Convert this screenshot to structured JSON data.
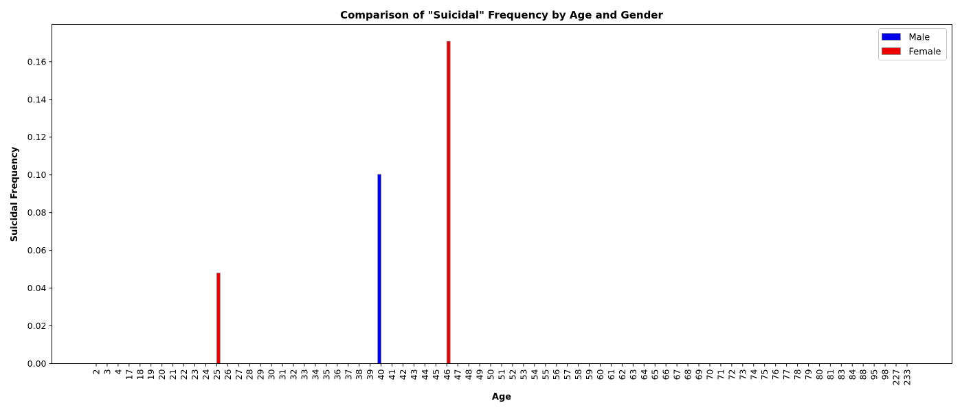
{
  "chart_data": {
    "type": "bar",
    "title": "Comparison of \"Suicidal\" Frequency by Age and Gender",
    "xlabel": "Age",
    "ylabel": "Suicidal Frequency",
    "categories": [
      "2",
      "3",
      "4",
      "17",
      "18",
      "19",
      "20",
      "21",
      "22",
      "23",
      "24",
      "25",
      "26",
      "27",
      "28",
      "29",
      "30",
      "31",
      "32",
      "33",
      "34",
      "35",
      "36",
      "37",
      "38",
      "39",
      "40",
      "41",
      "42",
      "43",
      "44",
      "45",
      "46",
      "47",
      "48",
      "49",
      "50",
      "51",
      "52",
      "53",
      "54",
      "55",
      "56",
      "57",
      "58",
      "59",
      "60",
      "61",
      "62",
      "63",
      "64",
      "65",
      "66",
      "67",
      "68",
      "69",
      "70",
      "71",
      "72",
      "73",
      "74",
      "75",
      "76",
      "77",
      "78",
      "79",
      "80",
      "81",
      "83",
      "84",
      "88",
      "95",
      "98",
      "227",
      "233"
    ],
    "series": [
      {
        "name": "Male",
        "color": "#0000ee",
        "values": [
          0,
          0,
          0,
          0,
          0,
          0,
          0,
          0,
          0,
          0,
          0,
          0,
          0,
          0,
          0,
          0,
          0,
          0,
          0,
          0,
          0,
          0,
          0,
          0,
          0,
          0,
          0.1003,
          0,
          0,
          0,
          0,
          0,
          0,
          0,
          0,
          0,
          0,
          0,
          0,
          0,
          0,
          0,
          0,
          0,
          0,
          0,
          0,
          0,
          0,
          0,
          0,
          0,
          0,
          0,
          0,
          0,
          0,
          0,
          0,
          0,
          0,
          0,
          0,
          0,
          0,
          0,
          0,
          0,
          0,
          0,
          0,
          0,
          0,
          0,
          0
        ]
      },
      {
        "name": "Female",
        "color": "#ee0000",
        "values": [
          0,
          0,
          0,
          0,
          0,
          0,
          0,
          0,
          0,
          0,
          0,
          0.048,
          0,
          0,
          0,
          0,
          0,
          0,
          0,
          0,
          0,
          0,
          0,
          0,
          0,
          0,
          0,
          0,
          0,
          0,
          0,
          0,
          0.1708,
          0,
          0,
          0,
          0,
          0,
          0,
          0,
          0,
          0,
          0,
          0,
          0,
          0,
          0,
          0,
          0,
          0,
          0,
          0,
          0,
          0,
          0,
          0,
          0,
          0,
          0,
          0,
          0,
          0,
          0,
          0,
          0,
          0,
          0,
          0,
          0,
          0,
          0,
          0,
          0,
          0,
          0
        ]
      }
    ],
    "ylim": [
      0,
      0.1795
    ],
    "yticks": [
      "0.00",
      "0.02",
      "0.04",
      "0.06",
      "0.08",
      "0.10",
      "0.12",
      "0.14",
      "0.16"
    ],
    "legend_position": "top-right",
    "grid": false
  }
}
